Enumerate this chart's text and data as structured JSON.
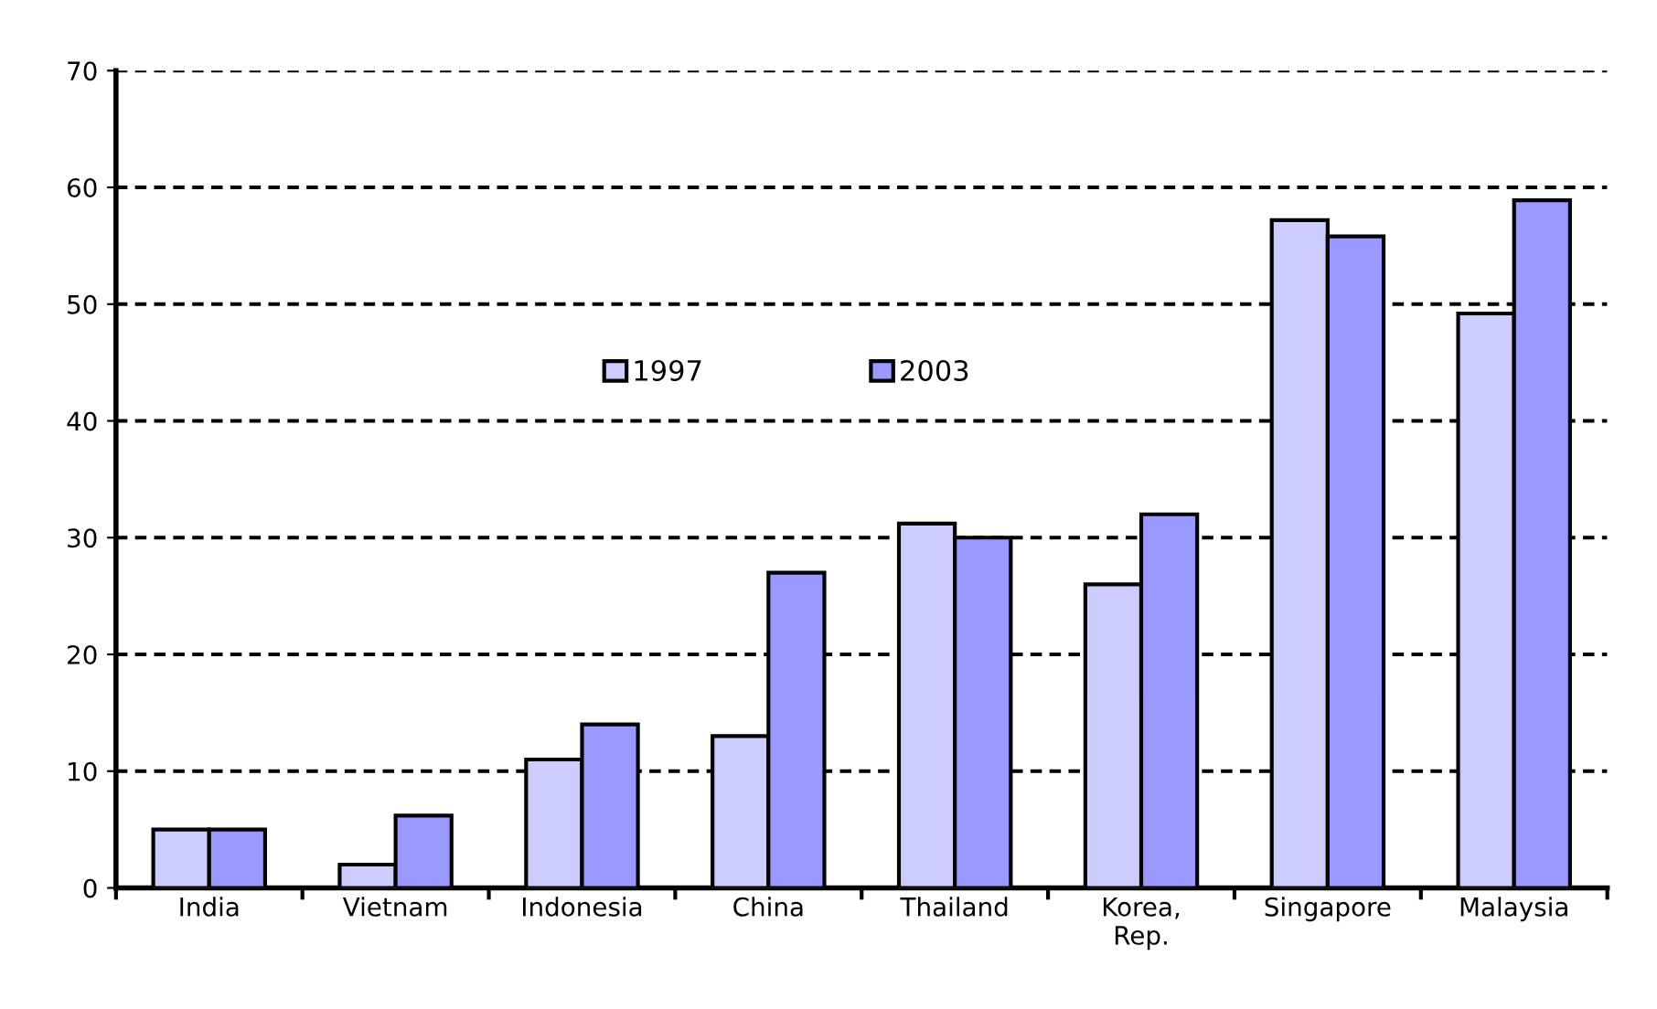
{
  "chart_data": {
    "type": "bar",
    "categories": [
      "India",
      "Vietnam",
      "Indonesia",
      "China",
      "Thailand",
      "Korea,\nRep.",
      "Singapore",
      "Malaysia"
    ],
    "series": [
      {
        "name": "1997",
        "color": "#ccccff",
        "values": [
          5,
          2,
          11,
          13,
          31.2,
          26,
          57.2,
          49.2
        ]
      },
      {
        "name": "2003",
        "color": "#9999ff",
        "values": [
          5,
          6.2,
          14,
          27,
          30,
          32,
          55.8,
          58.9
        ]
      }
    ],
    "ylim": [
      0,
      70
    ],
    "yticks": [
      0,
      10,
      20,
      30,
      40,
      50,
      60,
      70
    ],
    "grid": "y",
    "legend": "center"
  }
}
